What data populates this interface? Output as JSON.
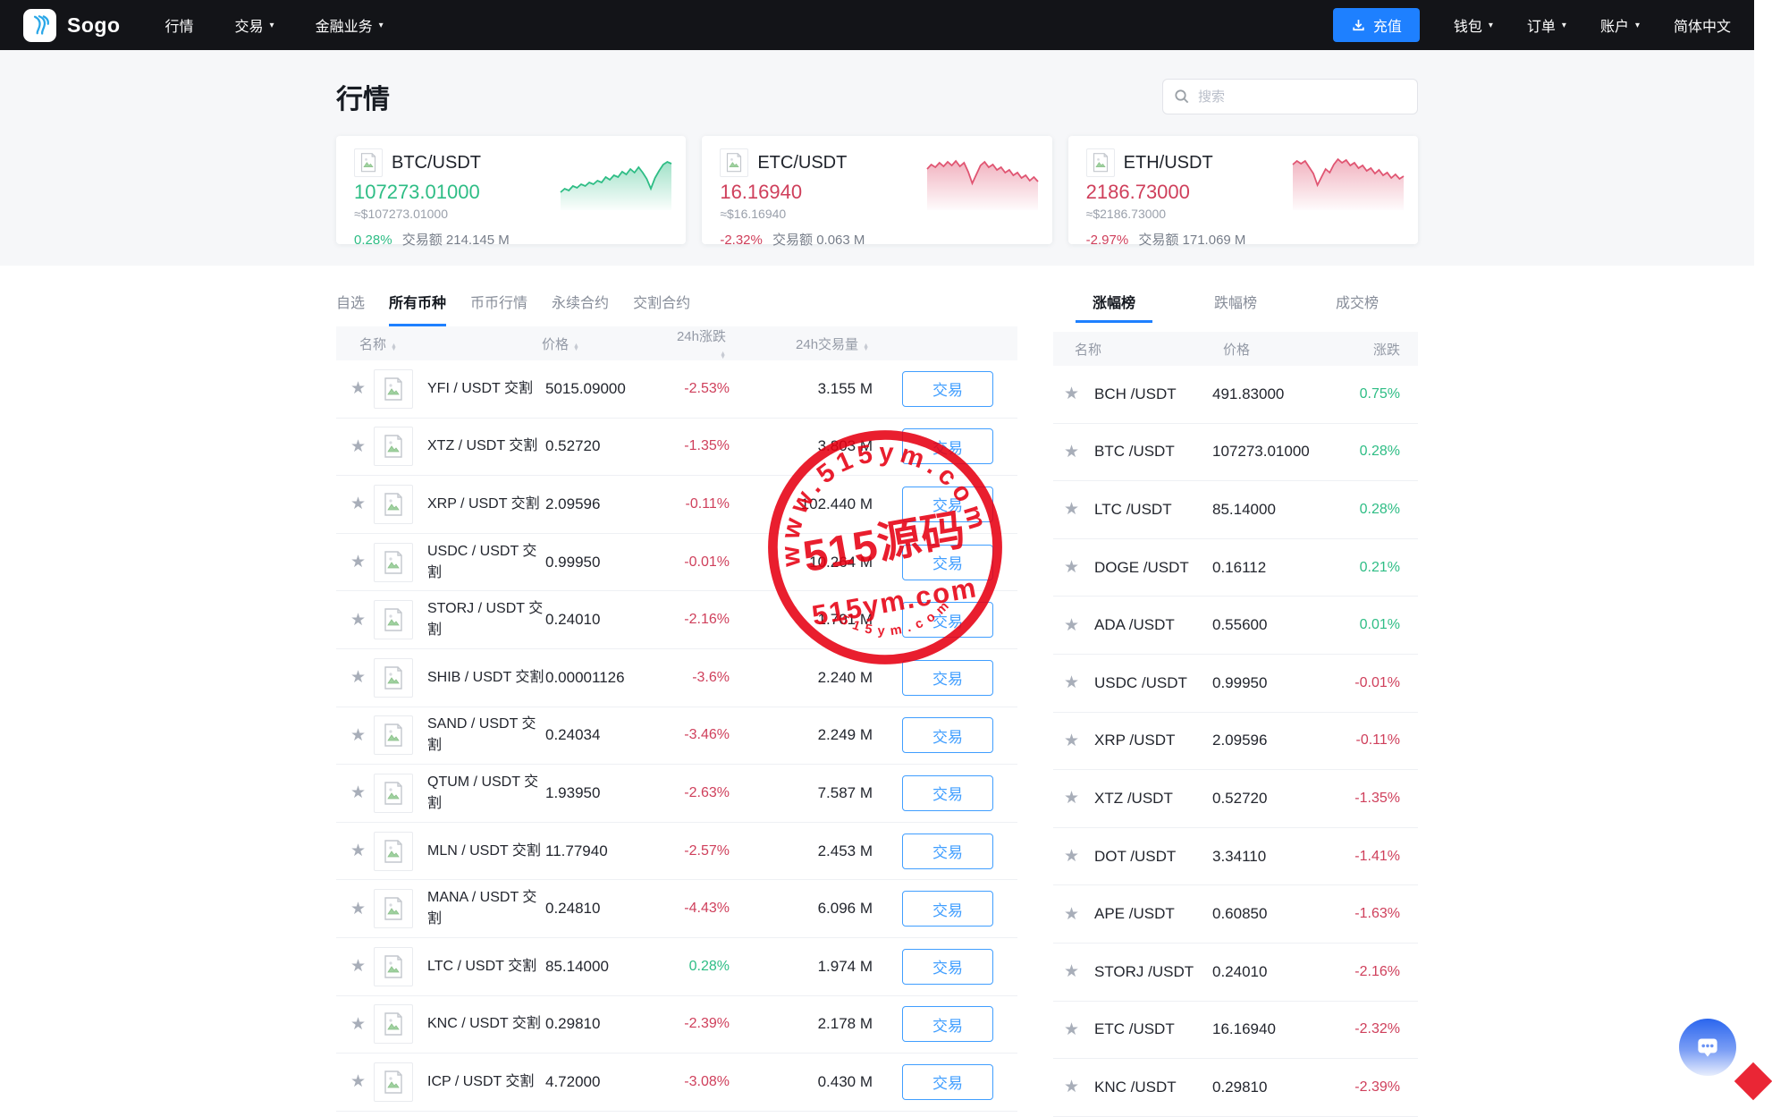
{
  "navbar": {
    "brand": "Sogo",
    "items": [
      {
        "label": "行情",
        "caret": false
      },
      {
        "label": "交易",
        "caret": true
      },
      {
        "label": "金融业务",
        "caret": true
      }
    ],
    "recharge_label": "充值",
    "right_items": [
      {
        "label": "钱包",
        "caret": true
      },
      {
        "label": "订单",
        "caret": true
      },
      {
        "label": "账户",
        "caret": true
      }
    ],
    "language": "简体中文"
  },
  "page": {
    "title": "行情",
    "search_placeholder": "搜索"
  },
  "cards": [
    {
      "pair": "BTC/USDT",
      "price": "107273.01000",
      "approx": "≈$107273.01000",
      "change": "0.28%",
      "volume_label": "交易额",
      "volume": "214.145 M",
      "trend": "up",
      "spark": [
        48,
        44,
        46,
        41,
        43,
        39,
        41,
        37,
        39,
        35,
        37,
        31,
        34,
        29,
        31,
        25,
        28,
        22,
        26,
        20,
        26,
        33,
        44,
        32,
        24,
        17,
        14,
        16
      ]
    },
    {
      "pair": "ETC/USDT",
      "price": "16.16940",
      "approx": "≈$16.16940",
      "change": "-2.32%",
      "volume_label": "交易额",
      "volume": "0.063 M",
      "trend": "down",
      "spark": [
        22,
        17,
        20,
        15,
        19,
        14,
        18,
        13,
        19,
        15,
        25,
        38,
        28,
        18,
        14,
        20,
        17,
        23,
        20,
        26,
        23,
        29,
        26,
        32,
        29,
        35,
        31,
        36
      ]
    },
    {
      "pair": "ETH/USDT",
      "price": "2186.73000",
      "approx": "≈$2186.73000",
      "change": "-2.97%",
      "volume_label": "交易额",
      "volume": "171.069 M",
      "trend": "down",
      "spark": [
        17,
        13,
        16,
        13,
        20,
        27,
        40,
        31,
        22,
        26,
        17,
        11,
        15,
        12,
        18,
        15,
        21,
        18,
        24,
        21,
        27,
        23,
        29,
        26,
        32,
        28,
        33,
        30
      ]
    }
  ],
  "market": {
    "tabs": [
      "自选",
      "所有币种",
      "币币行情",
      "永续合约",
      "交割合约"
    ],
    "active_tab": 1,
    "headers": [
      "名称",
      "价格",
      "24h涨跌",
      "24h交易量"
    ],
    "trade_label": "交易",
    "rows": [
      {
        "name": "YFI / USDT 交割",
        "price": "5015.09000",
        "change": "-2.53%",
        "volume": "3.155 M"
      },
      {
        "name": "XTZ / USDT 交割",
        "price": "0.52720",
        "change": "-1.35%",
        "volume": "3.803 M"
      },
      {
        "name": "XRP / USDT 交割",
        "price": "2.09596",
        "change": "-0.11%",
        "volume": "102.440 M"
      },
      {
        "name": "USDC / USDT 交割",
        "price": "0.99950",
        "change": "-0.01%",
        "volume": "10.264 M"
      },
      {
        "name": "STORJ / USDT 交割",
        "price": "0.24010",
        "change": "-2.16%",
        "volume": "1.701 M"
      },
      {
        "name": "SHIB / USDT 交割",
        "price": "0.00001126",
        "change": "-3.6%",
        "volume": "2.240 M"
      },
      {
        "name": "SAND / USDT 交割",
        "price": "0.24034",
        "change": "-3.46%",
        "volume": "2.249 M"
      },
      {
        "name": "QTUM / USDT 交割",
        "price": "1.93950",
        "change": "-2.63%",
        "volume": "7.587 M"
      },
      {
        "name": "MLN / USDT 交割",
        "price": "11.77940",
        "change": "-2.57%",
        "volume": "2.453 M"
      },
      {
        "name": "MANA / USDT 交割",
        "price": "0.24810",
        "change": "-4.43%",
        "volume": "6.096 M"
      },
      {
        "name": "LTC / USDT 交割",
        "price": "85.14000",
        "change": "0.28%",
        "volume": "1.974 M"
      },
      {
        "name": "KNC / USDT 交割",
        "price": "0.29810",
        "change": "-2.39%",
        "volume": "2.178 M"
      },
      {
        "name": "ICP / USDT 交割",
        "price": "4.72000",
        "change": "-3.08%",
        "volume": "0.430 M"
      }
    ]
  },
  "ranking": {
    "tabs": [
      "涨幅榜",
      "跌幅榜",
      "成交榜"
    ],
    "active_tab": 0,
    "headers": [
      "名称",
      "价格",
      "涨跌"
    ],
    "rows": [
      {
        "name": "BCH /USDT",
        "price": "491.83000",
        "change": "0.75%"
      },
      {
        "name": "BTC /USDT",
        "price": "107273.01000",
        "change": "0.28%"
      },
      {
        "name": "LTC /USDT",
        "price": "85.14000",
        "change": "0.28%"
      },
      {
        "name": "DOGE /USDT",
        "price": "0.16112",
        "change": "0.21%"
      },
      {
        "name": "ADA /USDT",
        "price": "0.55600",
        "change": "0.01%"
      },
      {
        "name": "USDC /USDT",
        "price": "0.99950",
        "change": "-0.01%"
      },
      {
        "name": "XRP /USDT",
        "price": "2.09596",
        "change": "-0.11%"
      },
      {
        "name": "XTZ /USDT",
        "price": "0.52720",
        "change": "-1.35%"
      },
      {
        "name": "DOT /USDT",
        "price": "3.34110",
        "change": "-1.41%"
      },
      {
        "name": "APE /USDT",
        "price": "0.60850",
        "change": "-1.63%"
      },
      {
        "name": "STORJ /USDT",
        "price": "0.24010",
        "change": "-2.16%"
      },
      {
        "name": "ETC /USDT",
        "price": "16.16940",
        "change": "-2.32%"
      },
      {
        "name": "KNC /USDT",
        "price": "0.29810",
        "change": "-2.39%"
      }
    ]
  },
  "watermark": {
    "ring_text": "www.515ym.com",
    "title": "515源码",
    "subtitle": "515ym.com",
    "bottom_text": "515ym.com",
    "color": "#e60012"
  },
  "colors": {
    "up": "#2ebd85",
    "down": "#cf3f5b",
    "spark_down": "#e05572",
    "accent": "#1e80ff",
    "trade_button": "#409eff",
    "navbar_bg": "#131418"
  }
}
